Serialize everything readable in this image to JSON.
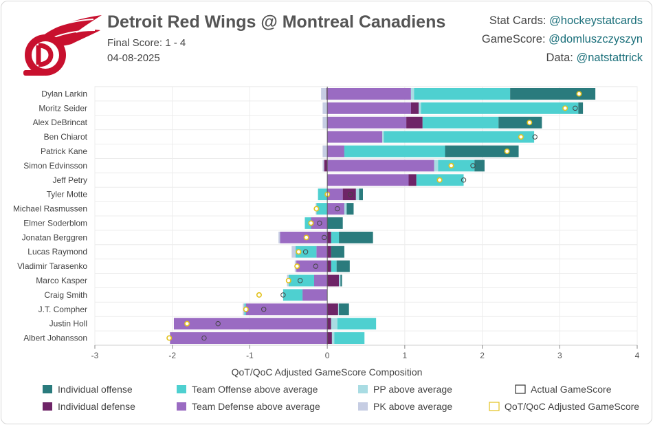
{
  "header": {
    "title": "Detroit Red Wings @ Montreal Canadiens",
    "final_score": "Final Score: 1 - 4",
    "date": "04-08-2025",
    "credits": [
      {
        "label": "Stat Cards: ",
        "handle": "@hockeystatcards"
      },
      {
        "label": "GameScore: ",
        "handle": "@domluszczyszyn"
      },
      {
        "label": "Data: ",
        "handle": "@natstattrick"
      }
    ]
  },
  "colors": {
    "individual_offense": "#2a7b7d",
    "individual_defense": "#6e2467",
    "team_offense": "#4ed0d0",
    "team_defense": "#9a6bc2",
    "pp": "#a9dce3",
    "pk": "#c6cde3",
    "actual_marker": "#444444",
    "adjusted_marker": "#e3c21d"
  },
  "chart_data": {
    "type": "bar",
    "orientation": "horizontal",
    "stacked": true,
    "xlabel": "QoT/QoC Adjusted GameScore Composition",
    "xlim": [
      -3,
      4
    ],
    "xticks": [
      "-3",
      "-2",
      "-1",
      "0",
      "1",
      "2",
      "3",
      "4"
    ],
    "grid": true,
    "legend_position": "bottom",
    "legend": [
      {
        "key": "individual_offense",
        "label": "Individual offense"
      },
      {
        "key": "team_offense",
        "label": "Team Offense above average"
      },
      {
        "key": "pp",
        "label": "PP above average"
      },
      {
        "key": "actual",
        "label": "Actual GameScore"
      },
      {
        "key": "individual_defense",
        "label": "Individual defense"
      },
      {
        "key": "team_defense",
        "label": "Team Defense above average"
      },
      {
        "key": "pk",
        "label": "PK above average"
      },
      {
        "key": "adjusted",
        "label": "QoT/QoC Adjusted GameScore"
      }
    ],
    "players": [
      {
        "name": "Dylan Larkin",
        "pos": [
          [
            "team_defense",
            1.08
          ],
          [
            "pp",
            0.04
          ],
          [
            "team_offense",
            1.24
          ],
          [
            "individual_offense",
            1.1
          ]
        ],
        "neg": [
          [
            "individual_defense",
            0.01
          ],
          [
            "pk",
            0.07
          ]
        ],
        "actual": 3.25,
        "adjusted": 3.25
      },
      {
        "name": "Moritz Seider",
        "pos": [
          [
            "team_defense",
            1.08
          ],
          [
            "individual_defense",
            0.1
          ],
          [
            "pp",
            0.03
          ],
          [
            "team_offense",
            2.03
          ],
          [
            "individual_offense",
            0.06
          ]
        ],
        "neg": [
          [
            "pk",
            0.06
          ]
        ],
        "actual": 3.2,
        "adjusted": 3.07
      },
      {
        "name": "Alex DeBrincat",
        "pos": [
          [
            "team_defense",
            1.02
          ],
          [
            "individual_defense",
            0.21
          ],
          [
            "team_offense",
            0.98
          ],
          [
            "individual_offense",
            0.56
          ]
        ],
        "neg": [
          [
            "pk",
            0.06
          ]
        ],
        "actual": 2.61,
        "adjusted": 2.61
      },
      {
        "name": "Ben Chiarot",
        "pos": [
          [
            "team_defense",
            0.71
          ],
          [
            "pp",
            0.02
          ],
          [
            "team_offense",
            1.94
          ]
        ],
        "neg": [],
        "actual": 2.68,
        "adjusted": 2.5
      },
      {
        "name": "Patrick Kane",
        "pos": [
          [
            "team_defense",
            0.22
          ],
          [
            "team_offense",
            1.3
          ],
          [
            "individual_offense",
            0.95
          ]
        ],
        "neg": [
          [
            "pk",
            0.06
          ]
        ],
        "actual": 2.32,
        "adjusted": 2.32
      },
      {
        "name": "Simon Edvinsson",
        "pos": [
          [
            "team_defense",
            1.38
          ],
          [
            "pp",
            0.05
          ],
          [
            "team_offense",
            0.47
          ],
          [
            "individual_offense",
            0.13
          ]
        ],
        "neg": [
          [
            "individual_defense",
            0.04
          ],
          [
            "pk",
            0.02
          ]
        ],
        "actual": 1.88,
        "adjusted": 1.6
      },
      {
        "name": "Jeff Petry",
        "pos": [
          [
            "team_defense",
            1.05
          ],
          [
            "individual_defense",
            0.1
          ],
          [
            "team_offense",
            0.61
          ]
        ],
        "neg": [],
        "actual": 1.76,
        "adjusted": 1.45
      },
      {
        "name": "Tyler Motte",
        "pos": [
          [
            "team_defense",
            0.2
          ],
          [
            "individual_defense",
            0.17
          ],
          [
            "pp",
            0.04
          ],
          [
            "individual_offense",
            0.05
          ]
        ],
        "neg": [
          [
            "team_offense",
            0.12
          ]
        ],
        "actual": 0.3,
        "adjusted": 0.0
      },
      {
        "name": "Michael Rasmussen",
        "pos": [
          [
            "team_defense",
            0.22
          ],
          [
            "pp",
            0.03
          ],
          [
            "individual_offense",
            0.09
          ]
        ],
        "neg": [
          [
            "team_offense",
            0.14
          ],
          [
            "pk",
            0.01
          ]
        ],
        "actual": 0.13,
        "adjusted": -0.14
      },
      {
        "name": "Elmer Soderblom",
        "pos": [
          [
            "individual_offense",
            0.2
          ]
        ],
        "neg": [
          [
            "team_defense",
            0.21
          ],
          [
            "team_offense",
            0.08
          ]
        ],
        "actual": -0.1,
        "adjusted": -0.21
      },
      {
        "name": "Jonatan Berggren",
        "pos": [
          [
            "individual_defense",
            0.05
          ],
          [
            "team_offense",
            0.1
          ],
          [
            "individual_offense",
            0.44
          ]
        ],
        "neg": [
          [
            "team_defense",
            0.61
          ],
          [
            "pk",
            0.02
          ]
        ],
        "actual": -0.04,
        "adjusted": -0.27
      },
      {
        "name": "Lucas Raymond",
        "pos": [
          [
            "individual_defense",
            0.05
          ],
          [
            "individual_offense",
            0.17
          ]
        ],
        "neg": [
          [
            "team_defense",
            0.14
          ],
          [
            "team_offense",
            0.27
          ],
          [
            "pk",
            0.05
          ]
        ],
        "actual": -0.28,
        "adjusted": -0.37
      },
      {
        "name": "Vladimir Tarasenko",
        "pos": [
          [
            "individual_defense",
            0.05
          ],
          [
            "team_offense",
            0.07
          ],
          [
            "individual_offense",
            0.17
          ]
        ],
        "neg": [
          [
            "team_defense",
            0.4
          ],
          [
            "pk",
            0.02
          ]
        ],
        "actual": -0.15,
        "adjusted": -0.39
      },
      {
        "name": "Marco Kasper",
        "pos": [
          [
            "individual_defense",
            0.15
          ],
          [
            "pp",
            0.02
          ],
          [
            "individual_offense",
            0.02
          ]
        ],
        "neg": [
          [
            "team_defense",
            0.17
          ],
          [
            "team_offense",
            0.33
          ],
          [
            "pk",
            0.02
          ]
        ],
        "actual": -0.35,
        "adjusted": -0.5
      },
      {
        "name": "Craig Smith",
        "pos": [],
        "neg": [
          [
            "team_defense",
            0.32
          ],
          [
            "team_offense",
            0.25
          ]
        ],
        "actual": -0.57,
        "adjusted": -0.88
      },
      {
        "name": "J.T. Compher",
        "pos": [
          [
            "individual_defense",
            0.14
          ],
          [
            "pp",
            0.01
          ],
          [
            "individual_offense",
            0.13
          ]
        ],
        "neg": [
          [
            "team_defense",
            1.05
          ],
          [
            "team_offense",
            0.02
          ],
          [
            "pk",
            0.02
          ]
        ],
        "actual": -0.82,
        "adjusted": -1.05
      },
      {
        "name": "Justin Holl",
        "pos": [
          [
            "individual_defense",
            0.05
          ],
          [
            "pp",
            0.08
          ],
          [
            "team_offense",
            0.5
          ]
        ],
        "neg": [
          [
            "team_defense",
            1.98
          ]
        ],
        "actual": -1.41,
        "adjusted": -1.81
      },
      {
        "name": "Albert Johansson",
        "pos": [
          [
            "individual_defense",
            0.06
          ],
          [
            "pp",
            0.03
          ],
          [
            "team_offense",
            0.39
          ]
        ],
        "neg": [
          [
            "team_defense",
            2.03
          ]
        ],
        "actual": -1.59,
        "adjusted": -2.04
      }
    ]
  }
}
